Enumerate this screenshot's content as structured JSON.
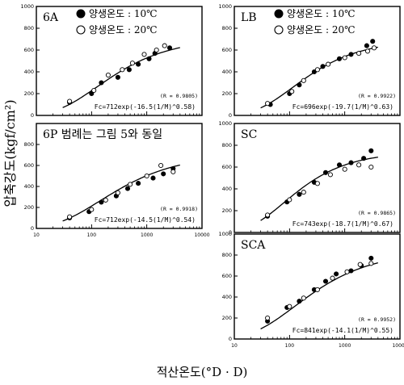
{
  "figure": {
    "ylabel": "압축강도(kgf/cm²)",
    "xlabel": "적산온도(°D · D)"
  },
  "legend": {
    "filled": "양생온도 : 10℃",
    "open": "양생온도 : 20℃"
  },
  "chart_data": [
    {
      "type": "scatter",
      "id": "6A",
      "title": "6A",
      "x_scale": "log",
      "xlim": [
        10,
        10000
      ],
      "ylim": [
        0,
        1000
      ],
      "yticks": [
        "1000",
        "800",
        "600",
        "400",
        "200",
        "0"
      ],
      "xticks": [],
      "legend": true,
      "r_label": "(R = 0.9805)",
      "equation": "Fc=712exp(-16.5(1/M)^0.58)",
      "curve": {
        "a": 712,
        "b": 16.5,
        "c": 0.58
      },
      "series": [
        {
          "name": "양생온도 : 10℃",
          "marker": "filled",
          "x": [
            40,
            100,
            150,
            300,
            480,
            700,
            1100,
            1400,
            2600
          ],
          "y": [
            120,
            200,
            300,
            350,
            420,
            470,
            520,
            570,
            620
          ]
        },
        {
          "name": "양생온도 : 20℃",
          "marker": "open",
          "x": [
            40,
            110,
            200,
            360,
            550,
            900,
            1500,
            2100
          ],
          "y": [
            130,
            230,
            370,
            420,
            480,
            560,
            600,
            640
          ]
        }
      ]
    },
    {
      "type": "scatter",
      "id": "LB",
      "title": "LB",
      "x_scale": "log",
      "xlim": [
        10,
        10000
      ],
      "ylim": [
        0,
        1000
      ],
      "yticks": [
        "1000",
        "800",
        "600",
        "400",
        "200",
        "0"
      ],
      "xticks": [],
      "legend": true,
      "r_label": "(R = 0.9922)",
      "equation": "Fc=696exp(-19.7(1/M)^0.63)",
      "curve": {
        "a": 696,
        "b": 19.7,
        "c": 0.63
      },
      "series": [
        {
          "name": "양생온도 : 10℃",
          "marker": "filled",
          "x": [
            45,
            100,
            150,
            280,
            400,
            800,
            1300,
            2500,
            3200
          ],
          "y": [
            100,
            200,
            280,
            400,
            450,
            520,
            560,
            640,
            680
          ]
        },
        {
          "name": "양생온도 : 20℃",
          "marker": "open",
          "x": [
            40,
            110,
            180,
            320,
            500,
            1000,
            1800,
            2600,
            3400
          ],
          "y": [
            110,
            220,
            320,
            420,
            470,
            530,
            570,
            590,
            620
          ]
        }
      ]
    },
    {
      "type": "scatter",
      "id": "6P",
      "title": "6P 범례는 그림 5와 동일",
      "x_scale": "log",
      "xlim": [
        10,
        10000
      ],
      "ylim": [
        0,
        1000
      ],
      "yticks": [
        "800",
        "600",
        "400",
        "200",
        "0"
      ],
      "xticks": [
        "10",
        "100",
        "1000",
        "10000"
      ],
      "legend": false,
      "r_label": "(R = 0.9918)",
      "equation": "Fc=712exp(-14.5(1/M)^0.54)",
      "curve": {
        "a": 712,
        "b": 14.5,
        "c": 0.54
      },
      "series": [
        {
          "name": "양생온도 : 10℃",
          "marker": "filled",
          "x": [
            40,
            90,
            150,
            280,
            450,
            700,
            1300,
            2000,
            3000
          ],
          "y": [
            100,
            160,
            250,
            310,
            380,
            430,
            480,
            520,
            570
          ]
        },
        {
          "name": "양생온도 : 20℃",
          "marker": "open",
          "x": [
            40,
            100,
            180,
            300,
            500,
            1000,
            1800,
            3000
          ],
          "y": [
            110,
            180,
            270,
            340,
            420,
            500,
            600,
            540
          ]
        }
      ]
    },
    {
      "type": "scatter",
      "id": "SC",
      "title": "SC",
      "x_scale": "log",
      "xlim": [
        10,
        10000
      ],
      "ylim": [
        0,
        1000
      ],
      "yticks": [
        "1000",
        "800",
        "600",
        "400",
        "200",
        "0"
      ],
      "xticks": [],
      "legend": false,
      "r_label": "(R = 0.9865)",
      "equation": "Fc=743exp(-18.7(1/M)^0.67)",
      "curve": {
        "a": 743,
        "b": 18.7,
        "c": 0.67
      },
      "series": [
        {
          "name": "양생온도 : 10℃",
          "marker": "filled",
          "x": [
            40,
            90,
            150,
            280,
            450,
            800,
            1300,
            2200,
            3000
          ],
          "y": [
            150,
            280,
            350,
            460,
            550,
            620,
            640,
            680,
            750
          ]
        },
        {
          "name": "양생온도 : 20℃",
          "marker": "open",
          "x": [
            40,
            100,
            180,
            320,
            550,
            1000,
            1800,
            3000
          ],
          "y": [
            160,
            300,
            370,
            450,
            530,
            580,
            620,
            600
          ]
        }
      ]
    },
    {
      "type": "scatter",
      "id": "SCA",
      "title": "SCA",
      "x_scale": "log",
      "xlim": [
        10,
        10000
      ],
      "ylim": [
        0,
        1000
      ],
      "yticks": [
        "1000",
        "800",
        "600",
        "400",
        "200",
        "0"
      ],
      "xticks": [
        "10",
        "100",
        "1000",
        "10000"
      ],
      "legend": false,
      "r_label": "(R = 0.9952)",
      "equation": "Fc=841exp(-14.1(1/M)^0.55)",
      "curve": {
        "a": 841,
        "b": 14.1,
        "c": 0.55
      },
      "series": [
        {
          "name": "양생온도 : 10℃",
          "marker": "filled",
          "x": [
            40,
            90,
            150,
            280,
            450,
            700,
            1300,
            2000,
            3000
          ],
          "y": [
            170,
            300,
            360,
            470,
            550,
            620,
            650,
            700,
            770
          ]
        },
        {
          "name": "양생온도 : 20℃",
          "marker": "open",
          "x": [
            40,
            100,
            180,
            320,
            600,
            1100,
            1900,
            3000
          ],
          "y": [
            200,
            310,
            390,
            470,
            580,
            640,
            710,
            720
          ]
        }
      ]
    }
  ]
}
